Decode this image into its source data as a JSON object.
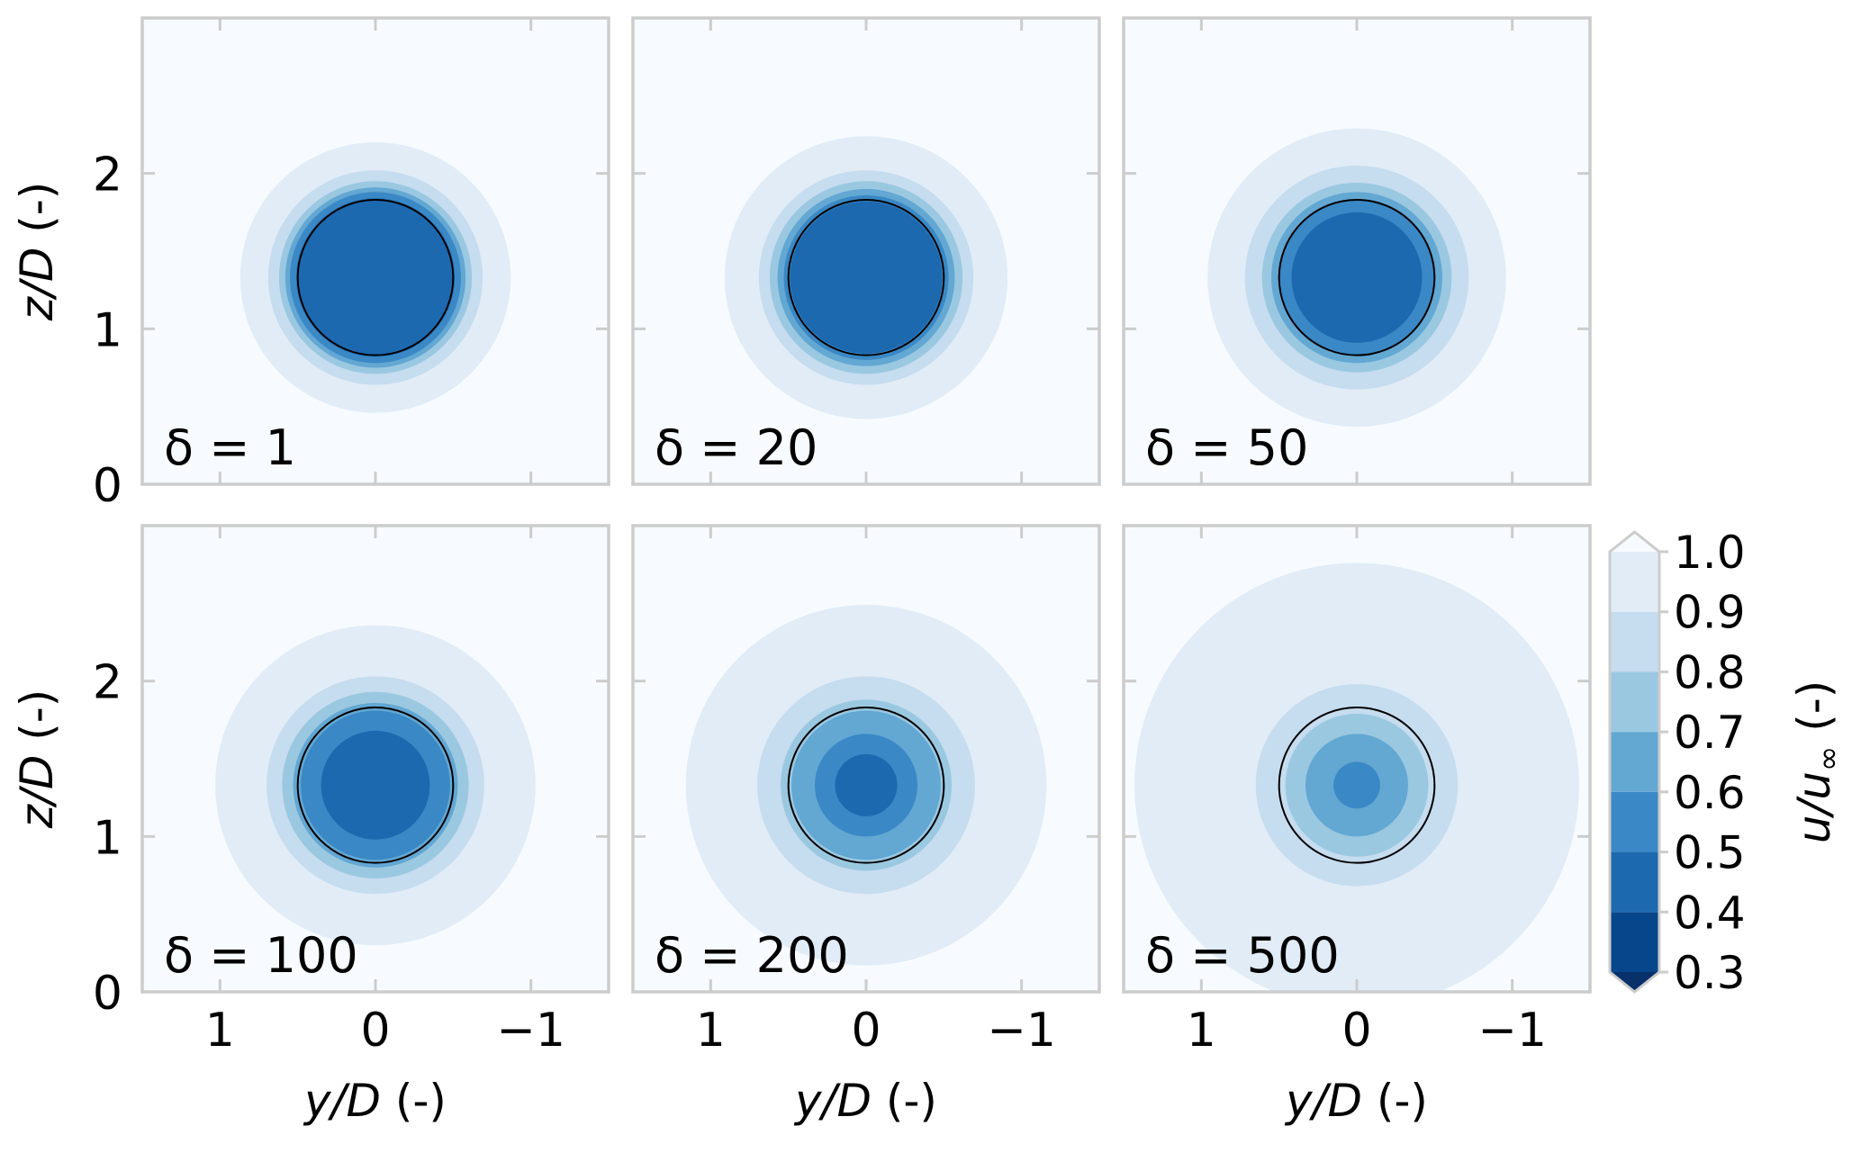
{
  "chart_data": {
    "type": "contour",
    "layout": "2x3 grid of filled-contour panels with shared colorbar",
    "panels": [
      {
        "label": "δ = 1",
        "delta": 1,
        "contour_radii": [
          {
            "level_max": 1.0,
            "r": 0.87
          },
          {
            "level_max": 0.9,
            "r": 0.69
          },
          {
            "level_max": 0.8,
            "r": 0.62
          },
          {
            "level_max": 0.7,
            "r": 0.58
          },
          {
            "level_max": 0.6,
            "r": 0.55
          },
          {
            "level_max": 0.5,
            "r": 0.51
          }
        ]
      },
      {
        "label": "δ = 20",
        "delta": 20,
        "contour_radii": [
          {
            "level_max": 1.0,
            "r": 0.91
          },
          {
            "level_max": 0.9,
            "r": 0.69
          },
          {
            "level_max": 0.8,
            "r": 0.62
          },
          {
            "level_max": 0.7,
            "r": 0.57
          },
          {
            "level_max": 0.6,
            "r": 0.53
          },
          {
            "level_max": 0.5,
            "r": 0.49
          }
        ]
      },
      {
        "label": "δ = 50",
        "delta": 50,
        "contour_radii": [
          {
            "level_max": 1.0,
            "r": 0.96
          },
          {
            "level_max": 0.9,
            "r": 0.72
          },
          {
            "level_max": 0.8,
            "r": 0.61
          },
          {
            "level_max": 0.7,
            "r": 0.55
          },
          {
            "level_max": 0.6,
            "r": 0.5
          },
          {
            "level_max": 0.5,
            "r": 0.42
          }
        ]
      },
      {
        "label": "δ = 100",
        "delta": 100,
        "contour_radii": [
          {
            "level_max": 1.0,
            "r": 1.03
          },
          {
            "level_max": 0.9,
            "r": 0.7
          },
          {
            "level_max": 0.8,
            "r": 0.6
          },
          {
            "level_max": 0.7,
            "r": 0.53
          },
          {
            "level_max": 0.6,
            "r": 0.48
          },
          {
            "level_max": 0.5,
            "r": 0.35
          }
        ]
      },
      {
        "label": "δ = 200",
        "delta": 200,
        "contour_radii": [
          {
            "level_max": 1.0,
            "r": 1.16
          },
          {
            "level_max": 0.9,
            "r": 0.7
          },
          {
            "level_max": 0.8,
            "r": 0.55
          },
          {
            "level_max": 0.7,
            "r": 0.48
          },
          {
            "level_max": 0.6,
            "r": 0.33
          },
          {
            "level_max": 0.5,
            "r": 0.2
          }
        ]
      },
      {
        "label": "δ = 500",
        "delta": 500,
        "contour_radii": [
          {
            "level_max": 1.0,
            "r": 1.43
          },
          {
            "level_max": 0.9,
            "r": 0.65
          },
          {
            "level_max": 0.8,
            "r": 0.46
          },
          {
            "level_max": 0.7,
            "r": 0.33
          },
          {
            "level_max": 0.6,
            "r": 0.15
          }
        ]
      }
    ],
    "rotor": {
      "center_y": 0,
      "center_z": 1.33,
      "radius": 0.5
    },
    "x_axis": {
      "label": "y/D (-)",
      "label_var": "y/D",
      "label_unit": " (-)",
      "range": [
        1.5,
        -1.5
      ],
      "inverted": true,
      "ticks": [
        1,
        0,
        -1
      ],
      "tick_labels": [
        "1",
        "0",
        "−1"
      ]
    },
    "y_axis": {
      "label": "z/D (-)",
      "label_var": "z/D",
      "label_unit": " (-)",
      "range": [
        0,
        3
      ],
      "ticks": [
        0,
        1,
        2
      ],
      "tick_labels": [
        "0",
        "1",
        "2"
      ]
    },
    "colorbar": {
      "label": "u/u∞ (-)",
      "label_var": "u/u",
      "label_sub": "∞",
      "label_unit": " (-)",
      "levels": [
        0.3,
        0.4,
        0.5,
        0.6,
        0.7,
        0.8,
        0.9,
        1.0
      ],
      "tick_labels": [
        "0.3",
        "0.4",
        "0.5",
        "0.6",
        "0.7",
        "0.8",
        "0.9",
        "1.0"
      ],
      "extend": "both",
      "colors": [
        "#08468b",
        "#1d69b0",
        "#3a88c5",
        "#63a7d3",
        "#9ac8e1",
        "#c6dcef",
        "#e1ecf7"
      ],
      "over_color": "#f7fbff",
      "under_color": "#08306b"
    },
    "spine_color": "#cccccc",
    "grid": false
  }
}
